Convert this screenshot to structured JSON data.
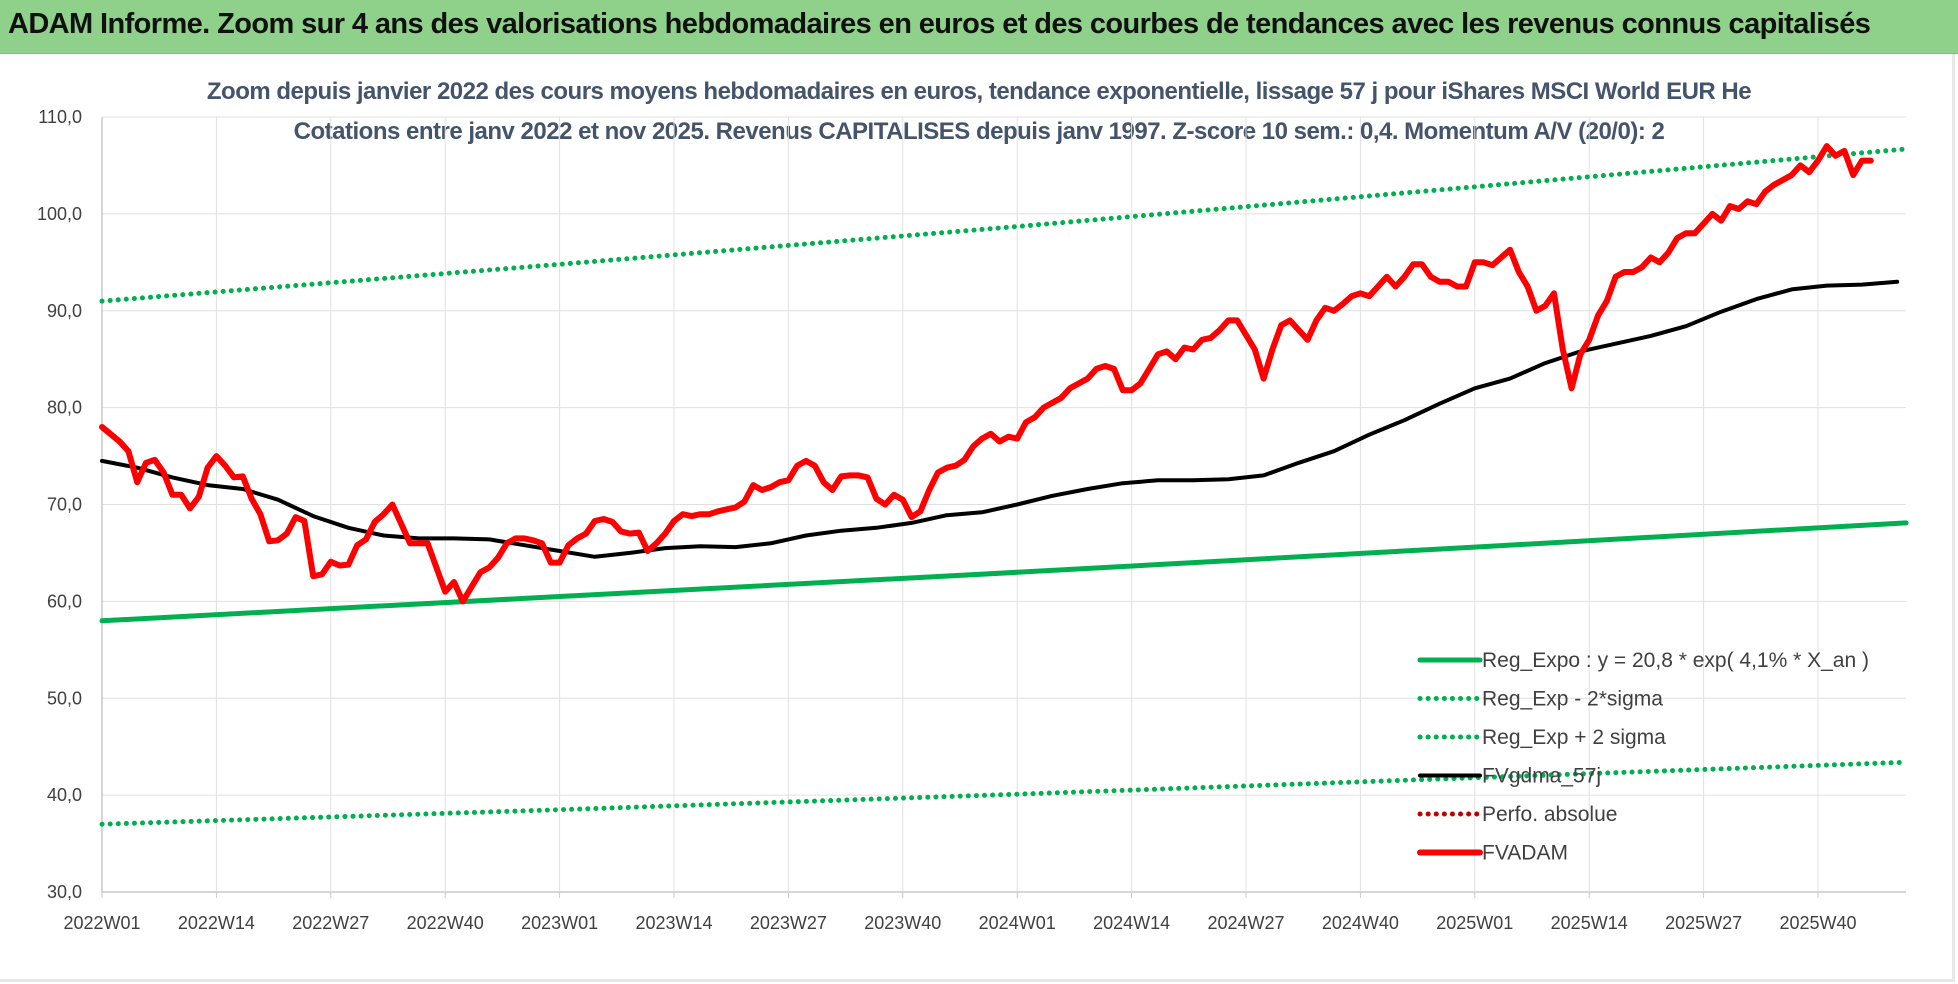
{
  "banner": {
    "title": "ADAM Informe. Zoom sur 4 ans des valorisations hebdomadaires en euros et des courbes de tendances avec les revenus connus capitalisés"
  },
  "chart_data": {
    "type": "line",
    "title_line1": "Zoom depuis janvier 2022 des cours moyens hebdomadaires en euros, tendance exponentielle, lissage 57 j pour iShares MSCI World EUR He",
    "title_line2": "Cotations entre janv 2022 et nov 2025. Revenus CAPITALISES depuis janv 1997. Z-score 10 sem.: 0,4. Momentum A/V (20/0): 2",
    "xlabel": "",
    "ylabel": "",
    "ylim": [
      30,
      110
    ],
    "y_ticks": [
      "30,0",
      "40,0",
      "50,0",
      "60,0",
      "70,0",
      "80,0",
      "90,0",
      "100,0",
      "110,0"
    ],
    "x_tick_labels": [
      "2022W01",
      "2022W14",
      "2022W27",
      "2022W40",
      "2023W01",
      "2023W14",
      "2023W27",
      "2023W40",
      "2024W01",
      "2024W14",
      "2024W27",
      "2024W40",
      "2025W01",
      "2025W14",
      "2025W27",
      "2025W40"
    ],
    "x_range_weeks": [
      0,
      205
    ],
    "grid": "vertical gridlines at each tick label, horizontal gridlines at each y tick",
    "legend_position": "bottom-right",
    "series": [
      {
        "name": "Reg_Expo : y = 20,8 * exp( 4,1% *  X_an )",
        "color": "#00b050",
        "style": "solid",
        "points": [
          [
            0,
            58.0
          ],
          [
            52,
            60.5
          ],
          [
            104,
            63.0
          ],
          [
            156,
            65.6
          ],
          [
            205,
            68.1
          ]
        ]
      },
      {
        "name": "Reg_Exp - 2*sigma",
        "color": "#00b050",
        "style": "dotted",
        "points": [
          [
            0,
            37.0
          ],
          [
            52,
            38.5
          ],
          [
            104,
            40.1
          ],
          [
            156,
            41.8
          ],
          [
            205,
            43.4
          ]
        ]
      },
      {
        "name": "Reg_Exp + 2 sigma",
        "color": "#00b050",
        "style": "dotted",
        "points": [
          [
            0,
            91.0
          ],
          [
            52,
            94.8
          ],
          [
            104,
            98.7
          ],
          [
            156,
            102.8
          ],
          [
            205,
            106.7
          ]
        ]
      },
      {
        "name": "FVgdma_57j",
        "color": "#000000",
        "style": "solid",
        "points": [
          [
            0,
            74.5
          ],
          [
            4,
            73.8
          ],
          [
            8,
            72.8
          ],
          [
            12,
            72.0
          ],
          [
            16,
            71.6
          ],
          [
            20,
            70.5
          ],
          [
            24,
            68.8
          ],
          [
            28,
            67.6
          ],
          [
            32,
            66.8
          ],
          [
            36,
            66.5
          ],
          [
            40,
            66.5
          ],
          [
            44,
            66.4
          ],
          [
            48,
            65.8
          ],
          [
            52,
            65.2
          ],
          [
            56,
            64.6
          ],
          [
            60,
            65.0
          ],
          [
            64,
            65.5
          ],
          [
            68,
            65.7
          ],
          [
            72,
            65.6
          ],
          [
            76,
            66.0
          ],
          [
            80,
            66.8
          ],
          [
            84,
            67.3
          ],
          [
            88,
            67.6
          ],
          [
            92,
            68.1
          ],
          [
            96,
            68.9
          ],
          [
            100,
            69.2
          ],
          [
            104,
            70.0
          ],
          [
            108,
            70.9
          ],
          [
            112,
            71.6
          ],
          [
            116,
            72.2
          ],
          [
            120,
            72.5
          ],
          [
            124,
            72.5
          ],
          [
            128,
            72.6
          ],
          [
            132,
            73.0
          ],
          [
            136,
            74.3
          ],
          [
            140,
            75.5
          ],
          [
            144,
            77.2
          ],
          [
            148,
            78.7
          ],
          [
            152,
            80.4
          ],
          [
            156,
            82.0
          ],
          [
            160,
            83.0
          ],
          [
            164,
            84.6
          ],
          [
            168,
            85.8
          ],
          [
            172,
            86.6
          ],
          [
            176,
            87.4
          ],
          [
            180,
            88.4
          ],
          [
            184,
            89.9
          ],
          [
            188,
            91.2
          ],
          [
            192,
            92.2
          ],
          [
            196,
            92.6
          ],
          [
            200,
            92.7
          ],
          [
            204,
            93.0
          ]
        ]
      },
      {
        "name": "Perfo. absolue",
        "color": "#c00000",
        "style": "dotted",
        "points": []
      },
      {
        "name": "FVADAM",
        "color": "#ff0000",
        "style": "solid",
        "points": [
          [
            0,
            78.0
          ],
          [
            2,
            76.5
          ],
          [
            3,
            75.5
          ],
          [
            4,
            72.3
          ],
          [
            5,
            74.3
          ],
          [
            6,
            74.6
          ],
          [
            7,
            73.3
          ],
          [
            8,
            71.0
          ],
          [
            9,
            71.0
          ],
          [
            10,
            69.6
          ],
          [
            11,
            70.8
          ],
          [
            12,
            73.8
          ],
          [
            13,
            75.0
          ],
          [
            14,
            74.0
          ],
          [
            15,
            72.8
          ],
          [
            16,
            72.9
          ],
          [
            17,
            70.6
          ],
          [
            18,
            69.0
          ],
          [
            19,
            66.2
          ],
          [
            20,
            66.3
          ],
          [
            21,
            67.0
          ],
          [
            22,
            68.7
          ],
          [
            23,
            68.3
          ],
          [
            24,
            62.6
          ],
          [
            25,
            62.8
          ],
          [
            26,
            64.1
          ],
          [
            27,
            63.7
          ],
          [
            28,
            63.8
          ],
          [
            29,
            65.8
          ],
          [
            30,
            66.4
          ],
          [
            31,
            68.2
          ],
          [
            32,
            69.0
          ],
          [
            33,
            70.0
          ],
          [
            34,
            68.0
          ],
          [
            35,
            66.0
          ],
          [
            36,
            66.0
          ],
          [
            37,
            66.0
          ],
          [
            38,
            63.5
          ],
          [
            39,
            61.0
          ],
          [
            40,
            62.0
          ],
          [
            41,
            60.0
          ],
          [
            42,
            61.5
          ],
          [
            43,
            63.0
          ],
          [
            44,
            63.5
          ],
          [
            45,
            64.5
          ],
          [
            46,
            66.0
          ],
          [
            47,
            66.5
          ],
          [
            48,
            66.5
          ],
          [
            49,
            66.3
          ],
          [
            50,
            66.0
          ],
          [
            51,
            64.0
          ],
          [
            52,
            64.0
          ],
          [
            53,
            65.8
          ],
          [
            54,
            66.5
          ],
          [
            55,
            67.0
          ],
          [
            56,
            68.3
          ],
          [
            57,
            68.5
          ],
          [
            58,
            68.2
          ],
          [
            59,
            67.2
          ],
          [
            60,
            67.0
          ],
          [
            61,
            67.1
          ],
          [
            62,
            65.2
          ],
          [
            63,
            66.0
          ],
          [
            64,
            67.0
          ],
          [
            65,
            68.3
          ],
          [
            66,
            69.0
          ],
          [
            67,
            68.8
          ],
          [
            68,
            69.0
          ],
          [
            69,
            69.0
          ],
          [
            70,
            69.3
          ],
          [
            71,
            69.5
          ],
          [
            72,
            69.7
          ],
          [
            73,
            70.3
          ],
          [
            74,
            72.0
          ],
          [
            75,
            71.5
          ],
          [
            76,
            71.8
          ],
          [
            77,
            72.3
          ],
          [
            78,
            72.5
          ],
          [
            79,
            74.0
          ],
          [
            80,
            74.5
          ],
          [
            81,
            74.0
          ],
          [
            82,
            72.3
          ],
          [
            83,
            71.5
          ],
          [
            84,
            72.9
          ],
          [
            85,
            73.0
          ],
          [
            86,
            73.0
          ],
          [
            87,
            72.8
          ],
          [
            88,
            70.6
          ],
          [
            89,
            70.0
          ],
          [
            90,
            71.0
          ],
          [
            91,
            70.5
          ],
          [
            92,
            68.7
          ],
          [
            93,
            69.3
          ],
          [
            94,
            71.5
          ],
          [
            95,
            73.3
          ],
          [
            96,
            73.8
          ],
          [
            97,
            74.0
          ],
          [
            98,
            74.6
          ],
          [
            99,
            76.0
          ],
          [
            100,
            76.8
          ],
          [
            101,
            77.3
          ],
          [
            102,
            76.5
          ],
          [
            103,
            77.0
          ],
          [
            104,
            76.8
          ],
          [
            105,
            78.5
          ],
          [
            106,
            79.0
          ],
          [
            107,
            80.0
          ],
          [
            108,
            80.5
          ],
          [
            109,
            81.0
          ],
          [
            110,
            82.0
          ],
          [
            111,
            82.5
          ],
          [
            112,
            83.0
          ],
          [
            113,
            84.0
          ],
          [
            114,
            84.3
          ],
          [
            115,
            84.0
          ],
          [
            116,
            81.8
          ],
          [
            117,
            81.8
          ],
          [
            118,
            82.5
          ],
          [
            119,
            84.0
          ],
          [
            120,
            85.5
          ],
          [
            121,
            85.8
          ],
          [
            122,
            85.0
          ],
          [
            123,
            86.2
          ],
          [
            124,
            86.0
          ],
          [
            125,
            87.0
          ],
          [
            126,
            87.2
          ],
          [
            127,
            88.0
          ],
          [
            128,
            89.0
          ],
          [
            129,
            89.0
          ],
          [
            130,
            87.5
          ],
          [
            131,
            86.0
          ],
          [
            132,
            83.0
          ],
          [
            133,
            86.0
          ],
          [
            134,
            88.5
          ],
          [
            135,
            89.0
          ],
          [
            136,
            88.0
          ],
          [
            137,
            87.0
          ],
          [
            138,
            89.0
          ],
          [
            139,
            90.3
          ],
          [
            140,
            90.0
          ],
          [
            141,
            90.7
          ],
          [
            142,
            91.5
          ],
          [
            143,
            91.8
          ],
          [
            144,
            91.5
          ],
          [
            145,
            92.5
          ],
          [
            146,
            93.5
          ],
          [
            147,
            92.5
          ],
          [
            148,
            93.5
          ],
          [
            149,
            94.8
          ],
          [
            150,
            94.8
          ],
          [
            151,
            93.5
          ],
          [
            152,
            93.0
          ],
          [
            153,
            93.0
          ],
          [
            154,
            92.5
          ],
          [
            155,
            92.5
          ],
          [
            156,
            95.0
          ],
          [
            157,
            95.0
          ],
          [
            158,
            94.7
          ],
          [
            159,
            95.5
          ],
          [
            160,
            96.3
          ],
          [
            161,
            94.0
          ],
          [
            162,
            92.5
          ],
          [
            163,
            90.0
          ],
          [
            164,
            90.5
          ],
          [
            165,
            91.8
          ],
          [
            166,
            86.0
          ],
          [
            167,
            82.0
          ],
          [
            168,
            85.5
          ],
          [
            169,
            87.0
          ],
          [
            170,
            89.5
          ],
          [
            171,
            91.0
          ],
          [
            172,
            93.5
          ],
          [
            173,
            94.0
          ],
          [
            174,
            94.0
          ],
          [
            175,
            94.5
          ],
          [
            176,
            95.5
          ],
          [
            177,
            95.0
          ],
          [
            178,
            96.0
          ],
          [
            179,
            97.5
          ],
          [
            180,
            98.0
          ],
          [
            181,
            98.0
          ],
          [
            182,
            99.0
          ],
          [
            183,
            100.0
          ],
          [
            184,
            99.3
          ],
          [
            185,
            100.8
          ],
          [
            186,
            100.5
          ],
          [
            187,
            101.3
          ],
          [
            188,
            101.0
          ],
          [
            189,
            102.3
          ],
          [
            190,
            103.0
          ],
          [
            191,
            103.5
          ],
          [
            192,
            104.0
          ],
          [
            193,
            105.0
          ],
          [
            194,
            104.3
          ],
          [
            195,
            105.5
          ],
          [
            196,
            107.0
          ],
          [
            197,
            106.0
          ],
          [
            198,
            106.5
          ],
          [
            199,
            104.0
          ],
          [
            200,
            105.5
          ],
          [
            201,
            105.5
          ]
        ]
      }
    ]
  }
}
